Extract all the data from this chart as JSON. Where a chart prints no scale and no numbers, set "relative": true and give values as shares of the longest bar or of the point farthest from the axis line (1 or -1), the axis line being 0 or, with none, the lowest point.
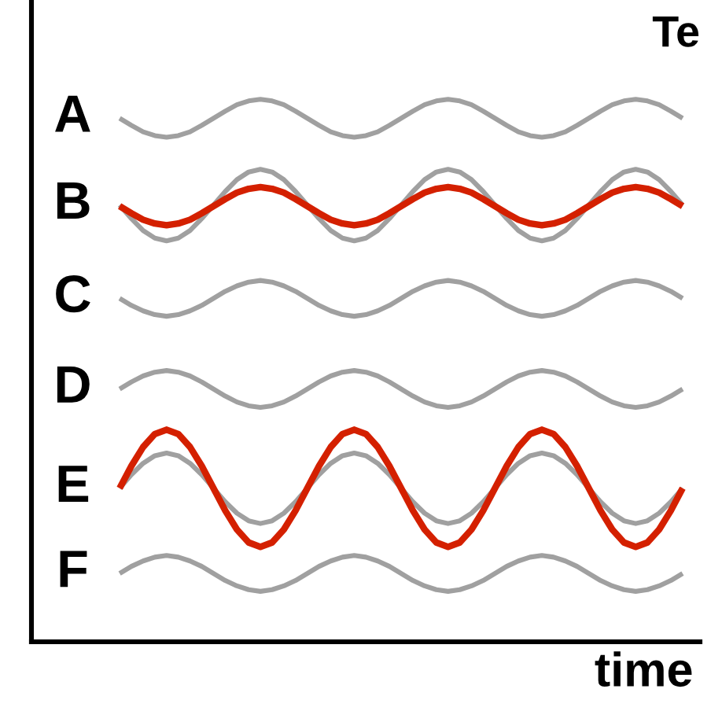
{
  "chart_data": {
    "type": "line",
    "relative": true,
    "xlabel": "time",
    "ylabel": "Te",
    "categories": [
      null,
      null,
      null,
      null,
      null,
      null,
      null,
      null,
      null,
      null,
      null,
      null,
      null,
      null,
      null,
      null,
      null,
      null,
      null,
      null,
      null,
      null,
      null,
      null,
      null,
      null,
      null,
      null,
      null,
      null,
      null,
      null,
      null,
      null,
      null,
      null,
      null,
      null,
      null,
      null,
      null,
      null,
      null,
      null,
      null,
      null,
      null,
      null,
      null
    ],
    "series": [
      {
        "name": "A",
        "color": "#a0a0a0",
        "values": [
          0.965,
          0.952,
          0.94,
          0.933,
          0.93,
          0.933,
          0.94,
          0.952,
          0.965,
          0.978,
          0.99,
          0.997,
          1,
          0.997,
          0.99,
          0.978,
          0.965,
          0.952,
          0.94,
          0.933,
          0.93,
          0.933,
          0.94,
          0.952,
          0.965,
          0.978,
          0.99,
          0.997,
          1,
          0.997,
          0.99,
          0.978,
          0.965,
          0.952,
          0.94,
          0.933,
          0.93,
          0.933,
          0.94,
          0.952,
          0.965,
          0.978,
          0.99,
          0.997,
          1,
          0.997,
          0.99,
          0.978,
          0.965
        ]
      },
      {
        "name": "B",
        "color": "#a0a0a0",
        "values": [
          0.805,
          0.78,
          0.758,
          0.744,
          0.739,
          0.744,
          0.758,
          0.78,
          0.805,
          0.83,
          0.852,
          0.866,
          0.871,
          0.866,
          0.852,
          0.83,
          0.805,
          0.78,
          0.758,
          0.744,
          0.739,
          0.744,
          0.758,
          0.78,
          0.805,
          0.83,
          0.852,
          0.866,
          0.871,
          0.866,
          0.852,
          0.83,
          0.805,
          0.78,
          0.758,
          0.744,
          0.739,
          0.744,
          0.758,
          0.78,
          0.805,
          0.83,
          0.852,
          0.866,
          0.871,
          0.866,
          0.852,
          0.83,
          0.805
        ]
      },
      {
        "name": "C",
        "color": "#a0a0a0",
        "values": [
          0.633,
          0.62,
          0.61,
          0.603,
          0.6,
          0.603,
          0.61,
          0.62,
          0.633,
          0.646,
          0.656,
          0.663,
          0.666,
          0.663,
          0.656,
          0.646,
          0.633,
          0.62,
          0.61,
          0.603,
          0.6,
          0.603,
          0.61,
          0.62,
          0.633,
          0.646,
          0.656,
          0.663,
          0.666,
          0.663,
          0.656,
          0.646,
          0.633,
          0.62,
          0.61,
          0.603,
          0.6,
          0.603,
          0.61,
          0.62,
          0.633,
          0.646,
          0.656,
          0.663,
          0.666,
          0.663,
          0.656,
          0.646,
          0.633
        ]
      },
      {
        "name": "D",
        "color": "#a0a0a0",
        "values": [
          0.466,
          0.479,
          0.49,
          0.497,
          0.5,
          0.497,
          0.49,
          0.479,
          0.466,
          0.453,
          0.442,
          0.435,
          0.432,
          0.435,
          0.442,
          0.453,
          0.466,
          0.479,
          0.49,
          0.497,
          0.5,
          0.497,
          0.49,
          0.479,
          0.466,
          0.453,
          0.442,
          0.435,
          0.432,
          0.435,
          0.442,
          0.453,
          0.466,
          0.479,
          0.49,
          0.497,
          0.5,
          0.497,
          0.49,
          0.479,
          0.466,
          0.453,
          0.442,
          0.435,
          0.432,
          0.435,
          0.442,
          0.453,
          0.466
        ]
      },
      {
        "name": "E",
        "color": "#a0a0a0",
        "values": [
          0.283,
          0.308,
          0.329,
          0.343,
          0.348,
          0.343,
          0.329,
          0.308,
          0.283,
          0.258,
          0.237,
          0.223,
          0.218,
          0.223,
          0.237,
          0.258,
          0.283,
          0.308,
          0.329,
          0.343,
          0.348,
          0.343,
          0.329,
          0.308,
          0.283,
          0.258,
          0.237,
          0.223,
          0.218,
          0.223,
          0.237,
          0.258,
          0.283,
          0.308,
          0.329,
          0.343,
          0.348,
          0.343,
          0.329,
          0.308,
          0.283,
          0.258,
          0.237,
          0.223,
          0.218,
          0.223,
          0.237,
          0.258,
          0.283
        ]
      },
      {
        "name": "F",
        "color": "#a0a0a0",
        "values": [
          0.126,
          0.139,
          0.149,
          0.156,
          0.159,
          0.156,
          0.149,
          0.139,
          0.126,
          0.113,
          0.103,
          0.096,
          0.093,
          0.096,
          0.103,
          0.113,
          0.126,
          0.139,
          0.149,
          0.156,
          0.159,
          0.156,
          0.149,
          0.139,
          0.126,
          0.113,
          0.103,
          0.096,
          0.093,
          0.096,
          0.103,
          0.113,
          0.126,
          0.139,
          0.149,
          0.156,
          0.159,
          0.156,
          0.149,
          0.139,
          0.126,
          0.113,
          0.103,
          0.096,
          0.093,
          0.096,
          0.103,
          0.113,
          0.126
        ]
      },
      {
        "color": "#d42000",
        "values": [
          0.803,
          0.79,
          0.778,
          0.771,
          0.768,
          0.771,
          0.778,
          0.79,
          0.803,
          0.816,
          0.828,
          0.835,
          0.838,
          0.835,
          0.828,
          0.816,
          0.803,
          0.79,
          0.778,
          0.771,
          0.768,
          0.771,
          0.778,
          0.79,
          0.803,
          0.816,
          0.828,
          0.835,
          0.838,
          0.835,
          0.828,
          0.816,
          0.803,
          0.79,
          0.778,
          0.771,
          0.768,
          0.771,
          0.778,
          0.79,
          0.803,
          0.816,
          0.828,
          0.835,
          0.838,
          0.835,
          0.828,
          0.816,
          0.803
        ]
      },
      {
        "color": "#d42000",
        "values": [
          0.283,
          0.324,
          0.359,
          0.383,
          0.391,
          0.383,
          0.359,
          0.324,
          0.283,
          0.242,
          0.207,
          0.183,
          0.175,
          0.183,
          0.207,
          0.242,
          0.283,
          0.324,
          0.359,
          0.383,
          0.391,
          0.383,
          0.359,
          0.324,
          0.283,
          0.242,
          0.207,
          0.183,
          0.175,
          0.183,
          0.207,
          0.242,
          0.283,
          0.324,
          0.359,
          0.383,
          0.391,
          0.383,
          0.359,
          0.324,
          0.283,
          0.242,
          0.207,
          0.183,
          0.175,
          0.183,
          0.207,
          0.242,
          0.283
        ]
      }
    ],
    "grid": false,
    "legend": false
  }
}
